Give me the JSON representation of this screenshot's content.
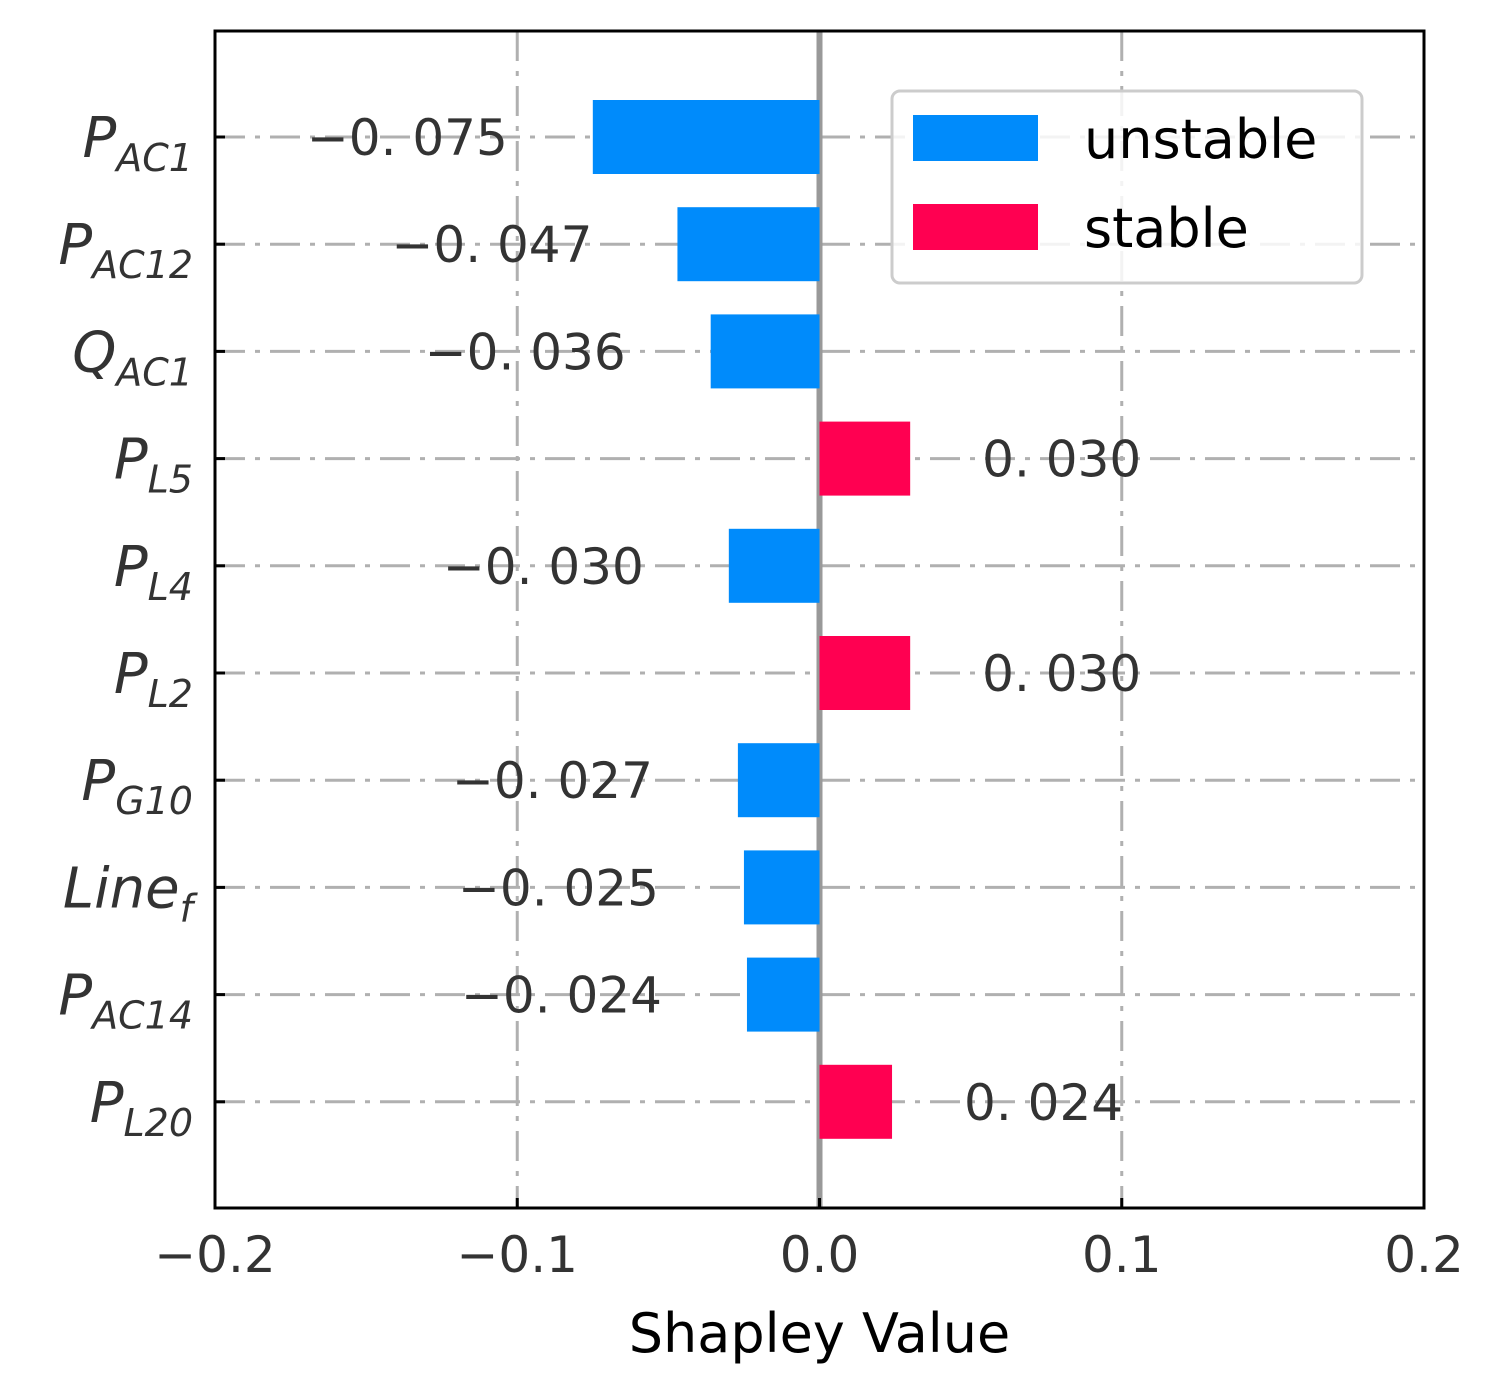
{
  "chart_data": {
    "type": "bar",
    "orientation": "horizontal",
    "title": "",
    "xlabel": "Shapley Value",
    "ylabel": "",
    "xlim": [
      -0.2,
      0.2
    ],
    "xticks": [
      "−0.2",
      "−0.1",
      "0.0",
      "0.1",
      "0.2"
    ],
    "xtick_values": [
      -0.2,
      -0.1,
      0.0,
      0.1,
      0.2
    ],
    "grid": true,
    "legend_position": "top-right",
    "legend": [
      {
        "label": "unstable",
        "color": "#008bfb"
      },
      {
        "label": "stable",
        "color": "#ff0051"
      }
    ],
    "categories": [
      {
        "base": "P",
        "sub": "AC1",
        "value": -0.075,
        "label": "−0. 075",
        "class": "unstable"
      },
      {
        "base": "P",
        "sub": "AC12",
        "value": -0.047,
        "label": "−0. 047",
        "class": "unstable"
      },
      {
        "base": "Q",
        "sub": "AC1",
        "value": -0.036,
        "label": "−0. 036",
        "class": "unstable"
      },
      {
        "base": "P",
        "sub": "L5",
        "value": 0.03,
        "label": "0. 030",
        "class": "stable"
      },
      {
        "base": "P",
        "sub": "L4",
        "value": -0.03,
        "label": "−0. 030",
        "class": "unstable"
      },
      {
        "base": "P",
        "sub": "L2",
        "value": 0.03,
        "label": "0. 030",
        "class": "stable"
      },
      {
        "base": "P",
        "sub": "G10",
        "value": -0.027,
        "label": "−0. 027",
        "class": "unstable"
      },
      {
        "base": "Line",
        "sub": "f",
        "value": -0.025,
        "label": "−0. 025",
        "class": "unstable"
      },
      {
        "base": "P",
        "sub": "AC14",
        "value": -0.024,
        "label": "−0. 024",
        "class": "unstable"
      },
      {
        "base": "P",
        "sub": "L20",
        "value": 0.024,
        "label": "0. 024",
        "class": "stable"
      }
    ]
  }
}
